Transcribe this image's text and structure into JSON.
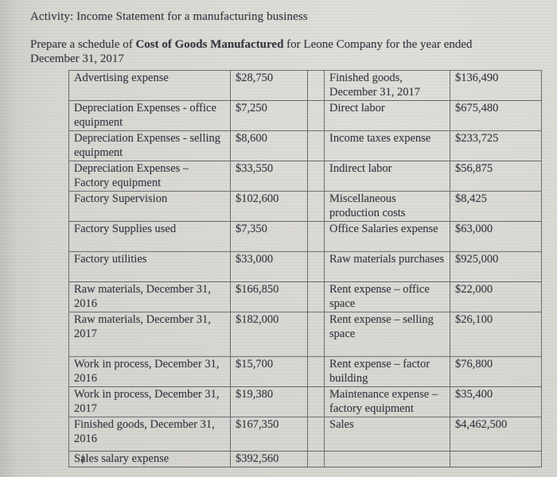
{
  "header": {
    "activity_title": "Activity: Income Statement for a manufacturing business",
    "instruction": {
      "prefix": "Prepare a schedule of ",
      "bold": "Cost of Goods Manufactured",
      "suffix": " for Leone Company for the year ended",
      "line2": "December 31, 2017"
    }
  },
  "colors": {
    "paper": "#d8d6d1",
    "text": "#343741",
    "table_border": "#666a71"
  },
  "table": {
    "rows": [
      {
        "left_label": "Advertising expense",
        "left_value": "$28,750",
        "right_label": "Finished goods, December 31, 2017",
        "right_value": "$136,490"
      },
      {
        "left_label": "Depreciation Expenses - office equipment",
        "left_value": "$7,250",
        "right_label": "Direct labor",
        "right_value": "$675,480"
      },
      {
        "left_label": "Depreciation Expenses - selling equipment",
        "left_value": "$8,600",
        "right_label": "Income taxes expense",
        "right_value": "$233,725"
      },
      {
        "left_label": "Depreciation Expenses – Factory equipment",
        "left_value": "$33,550",
        "right_label": "Indirect labor",
        "right_value": "$56,875"
      },
      {
        "left_label": "Factory Supervision",
        "left_value": "$102,600",
        "right_label": "Miscellaneous production costs",
        "right_value": "$8,425"
      },
      {
        "left_label": "Factory Supplies used",
        "left_value": "$7,350",
        "right_label": "Office Salaries expense",
        "right_value": "$63,000"
      },
      {
        "left_label": "Factory utilities",
        "left_value": "$33,000",
        "right_label": "Raw materials purchases",
        "right_value": "$925,000"
      },
      {
        "left_label": "Raw materials, December 31, 2016",
        "left_value": "$166,850",
        "right_label": "Rent expense – office space",
        "right_value": "$22,000"
      },
      {
        "left_label": "Raw materials, December 31, 2017",
        "left_value": "$182,000",
        "right_label": "Rent expense – selling space",
        "right_value": "$26,100"
      },
      {
        "left_label": "Work in process, December 31, 2016",
        "left_value": "$15,700",
        "right_label": "Rent expense – factor building",
        "right_value": "$76,800"
      },
      {
        "left_label": "Work in process, December 31, 2017",
        "left_value": "$19,380",
        "right_label": "Maintenance expense – factory equipment",
        "right_value": "$35,400"
      },
      {
        "left_label": "Finished goods, December 31, 2016",
        "left_value": "$167,350",
        "right_label": "Sales",
        "right_value": "$4,462,500"
      },
      {
        "left_label": "Sales salary expense",
        "left_value": "$392,560",
        "right_label": "",
        "right_value": ""
      }
    ]
  }
}
